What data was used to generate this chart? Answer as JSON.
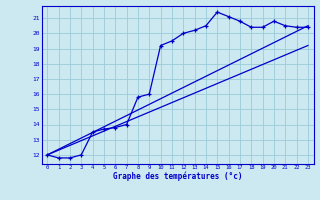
{
  "xlabel": "Graphe des températures (°c)",
  "bg_color": "#cce8f0",
  "grid_color": "#99ccd9",
  "line_color": "#0000cc",
  "x_ticks": [
    0,
    1,
    2,
    3,
    4,
    5,
    6,
    7,
    8,
    9,
    10,
    11,
    12,
    13,
    14,
    15,
    16,
    17,
    18,
    19,
    20,
    21,
    22,
    23
  ],
  "y_ticks": [
    12,
    13,
    14,
    15,
    16,
    17,
    18,
    19,
    20,
    21
  ],
  "ylim": [
    11.4,
    21.8
  ],
  "xlim": [
    -0.5,
    23.5
  ],
  "temp_curve_x": [
    0,
    1,
    2,
    3,
    4,
    5,
    6,
    7,
    8,
    9,
    10,
    11,
    12,
    13,
    14,
    15,
    16,
    17,
    18,
    19,
    20,
    21,
    22,
    23
  ],
  "temp_curve_y": [
    12.0,
    11.8,
    11.8,
    12.0,
    13.5,
    13.7,
    13.8,
    14.0,
    15.8,
    16.0,
    19.2,
    19.5,
    20.0,
    20.2,
    20.5,
    21.4,
    21.1,
    20.8,
    20.4,
    20.4,
    20.8,
    20.5,
    20.4,
    20.4
  ],
  "trend1_x": [
    0,
    23
  ],
  "trend1_y": [
    12.0,
    20.5
  ],
  "trend2_x": [
    0,
    23
  ],
  "trend2_y": [
    12.0,
    19.2
  ]
}
